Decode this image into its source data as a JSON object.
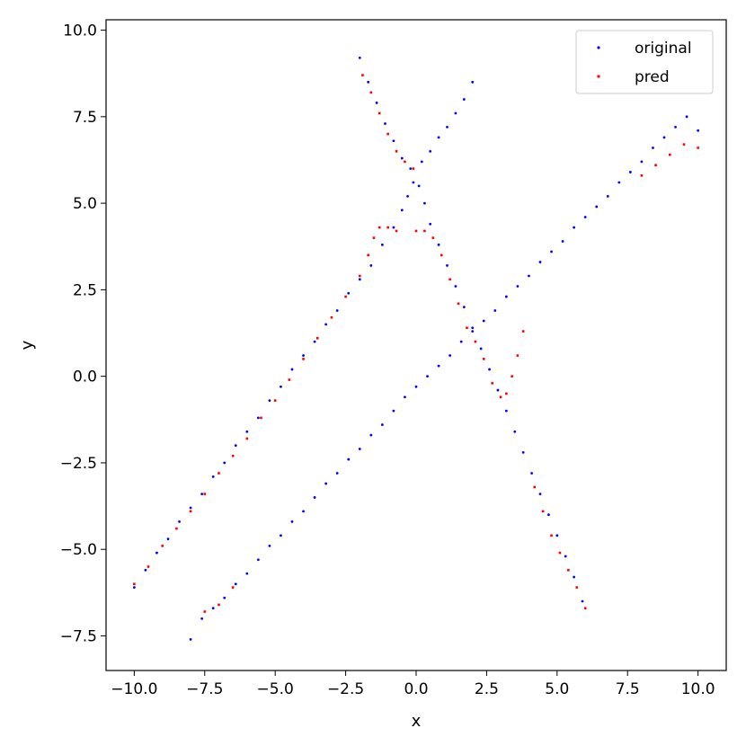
{
  "chart_data": {
    "type": "scatter",
    "title": "",
    "xlabel": "x",
    "ylabel": "y",
    "xlim": [
      -11.0,
      11.0
    ],
    "ylim": [
      -8.5,
      10.3
    ],
    "x_ticks": [
      -10.0,
      -7.5,
      -5.0,
      -2.5,
      0.0,
      2.5,
      5.0,
      7.5,
      10.0
    ],
    "y_ticks": [
      -7.5,
      -5.0,
      -2.5,
      0.0,
      2.5,
      5.0,
      7.5,
      10.0
    ],
    "x_tick_labels": [
      "−10.0",
      "−7.5",
      "−5.0",
      "−2.5",
      "0.0",
      "2.5",
      "5.0",
      "7.5",
      "10.0"
    ],
    "y_tick_labels": [
      "−7.5",
      "−5.0",
      "−2.5",
      "0.0",
      "2.5",
      "5.0",
      "7.5",
      "10.0"
    ],
    "grid": false,
    "legend_position": "top-right",
    "series": [
      {
        "name": "original",
        "color": "#0000ff",
        "points": [
          [
            -10.0,
            -6.1
          ],
          [
            -9.6,
            -5.6
          ],
          [
            -9.2,
            -5.1
          ],
          [
            -8.8,
            -4.7
          ],
          [
            -8.4,
            -4.2
          ],
          [
            -8.0,
            -3.8
          ],
          [
            -7.6,
            -3.4
          ],
          [
            -7.2,
            -2.9
          ],
          [
            -6.8,
            -2.5
          ],
          [
            -6.4,
            -2.0
          ],
          [
            -6.0,
            -1.6
          ],
          [
            -5.6,
            -1.2
          ],
          [
            -5.2,
            -0.7
          ],
          [
            -4.8,
            -0.3
          ],
          [
            -4.4,
            0.2
          ],
          [
            -4.0,
            0.6
          ],
          [
            -3.6,
            1.0
          ],
          [
            -3.2,
            1.5
          ],
          [
            -2.8,
            1.9
          ],
          [
            -2.4,
            2.4
          ],
          [
            -2.0,
            2.8
          ],
          [
            -1.6,
            3.2
          ],
          [
            -1.2,
            3.8
          ],
          [
            -0.8,
            4.3
          ],
          [
            -0.5,
            4.8
          ],
          [
            -0.3,
            5.2
          ],
          [
            -0.1,
            5.6
          ],
          [
            0.1,
            5.5
          ],
          [
            0.3,
            5.0
          ],
          [
            0.5,
            4.4
          ],
          [
            0.8,
            3.8
          ],
          [
            1.1,
            3.2
          ],
          [
            1.4,
            2.6
          ],
          [
            1.7,
            2.0
          ],
          [
            2.0,
            1.4
          ],
          [
            2.3,
            0.8
          ],
          [
            2.6,
            0.2
          ],
          [
            2.9,
            -0.4
          ],
          [
            3.2,
            -1.0
          ],
          [
            3.5,
            -1.6
          ],
          [
            3.8,
            -2.2
          ],
          [
            4.1,
            -2.8
          ],
          [
            4.4,
            -3.4
          ],
          [
            4.7,
            -4.0
          ],
          [
            5.0,
            -4.6
          ],
          [
            5.3,
            -5.2
          ],
          [
            5.6,
            -5.8
          ],
          [
            5.9,
            -6.5
          ],
          [
            -2.0,
            9.2
          ],
          [
            -1.7,
            8.5
          ],
          [
            -1.4,
            7.9
          ],
          [
            -1.1,
            7.3
          ],
          [
            -0.8,
            6.8
          ],
          [
            -0.5,
            6.3
          ],
          [
            -0.2,
            6.0
          ],
          [
            0.2,
            6.2
          ],
          [
            0.5,
            6.5
          ],
          [
            0.8,
            6.9
          ],
          [
            1.1,
            7.2
          ],
          [
            1.4,
            7.6
          ],
          [
            1.7,
            8.0
          ],
          [
            2.0,
            8.5
          ],
          [
            -8.0,
            -7.6
          ],
          [
            -7.6,
            -7.0
          ],
          [
            -7.2,
            -6.7
          ],
          [
            -6.8,
            -6.4
          ],
          [
            -6.4,
            -6.0
          ],
          [
            -6.0,
            -5.7
          ],
          [
            -5.6,
            -5.3
          ],
          [
            -5.2,
            -4.9
          ],
          [
            -4.8,
            -4.6
          ],
          [
            -4.4,
            -4.2
          ],
          [
            -4.0,
            -3.9
          ],
          [
            -3.6,
            -3.5
          ],
          [
            -3.2,
            -3.1
          ],
          [
            -2.8,
            -2.8
          ],
          [
            -2.4,
            -2.4
          ],
          [
            -2.0,
            -2.1
          ],
          [
            -1.6,
            -1.7
          ],
          [
            -1.2,
            -1.4
          ],
          [
            -0.8,
            -1.0
          ],
          [
            -0.4,
            -0.6
          ],
          [
            0.0,
            -0.3
          ],
          [
            0.4,
            0.0
          ],
          [
            0.8,
            0.3
          ],
          [
            1.2,
            0.6
          ],
          [
            1.6,
            1.0
          ],
          [
            2.0,
            1.3
          ],
          [
            2.4,
            1.6
          ],
          [
            2.8,
            1.9
          ],
          [
            3.2,
            2.3
          ],
          [
            3.6,
            2.6
          ],
          [
            4.0,
            2.9
          ],
          [
            4.4,
            3.3
          ],
          [
            4.8,
            3.6
          ],
          [
            5.2,
            3.9
          ],
          [
            5.6,
            4.3
          ],
          [
            6.0,
            4.6
          ],
          [
            6.4,
            4.9
          ],
          [
            6.8,
            5.2
          ],
          [
            7.2,
            5.6
          ],
          [
            7.6,
            5.9
          ],
          [
            8.0,
            6.2
          ],
          [
            8.4,
            6.6
          ],
          [
            8.8,
            6.9
          ],
          [
            9.2,
            7.2
          ],
          [
            9.6,
            7.5
          ],
          [
            10.0,
            7.1
          ]
        ]
      },
      {
        "name": "pred",
        "color": "#ff0000",
        "points": [
          [
            -10.0,
            -6.0
          ],
          [
            -9.5,
            -5.5
          ],
          [
            -9.0,
            -4.9
          ],
          [
            -8.5,
            -4.4
          ],
          [
            -8.0,
            -3.9
          ],
          [
            -7.5,
            -3.4
          ],
          [
            -7.0,
            -2.8
          ],
          [
            -6.5,
            -2.3
          ],
          [
            -6.0,
            -1.8
          ],
          [
            -5.5,
            -1.2
          ],
          [
            -5.0,
            -0.7
          ],
          [
            -4.5,
            -0.1
          ],
          [
            -4.0,
            0.5
          ],
          [
            -3.5,
            1.1
          ],
          [
            -3.0,
            1.7
          ],
          [
            -2.5,
            2.3
          ],
          [
            -2.0,
            2.9
          ],
          [
            -1.7,
            3.5
          ],
          [
            -1.5,
            4.0
          ],
          [
            -1.3,
            4.3
          ],
          [
            -1.0,
            4.3
          ],
          [
            -0.7,
            4.2
          ],
          [
            0.0,
            4.2
          ],
          [
            0.3,
            4.2
          ],
          [
            0.6,
            4.0
          ],
          [
            0.9,
            3.5
          ],
          [
            1.2,
            2.8
          ],
          [
            1.5,
            2.1
          ],
          [
            1.8,
            1.4
          ],
          [
            2.1,
            1.0
          ],
          [
            2.4,
            0.5
          ],
          [
            2.7,
            -0.2
          ],
          [
            3.0,
            -0.6
          ],
          [
            3.2,
            -0.5
          ],
          [
            3.4,
            0.0
          ],
          [
            3.6,
            0.6
          ],
          [
            3.8,
            1.3
          ],
          [
            -1.9,
            8.7
          ],
          [
            -1.6,
            8.2
          ],
          [
            -1.3,
            7.6
          ],
          [
            -1.0,
            7.0
          ],
          [
            -0.7,
            6.5
          ],
          [
            -0.4,
            6.2
          ],
          [
            -0.1,
            6.0
          ],
          [
            -7.5,
            -6.8
          ],
          [
            -7.0,
            -6.6
          ],
          [
            -6.5,
            -6.1
          ],
          [
            4.2,
            -3.2
          ],
          [
            4.5,
            -3.9
          ],
          [
            4.8,
            -4.6
          ],
          [
            5.1,
            -5.1
          ],
          [
            5.4,
            -5.6
          ],
          [
            5.7,
            -6.1
          ],
          [
            6.0,
            -6.7
          ],
          [
            8.0,
            5.8
          ],
          [
            8.5,
            6.1
          ],
          [
            9.0,
            6.4
          ],
          [
            9.5,
            6.7
          ],
          [
            10.0,
            6.6
          ]
        ]
      }
    ]
  }
}
